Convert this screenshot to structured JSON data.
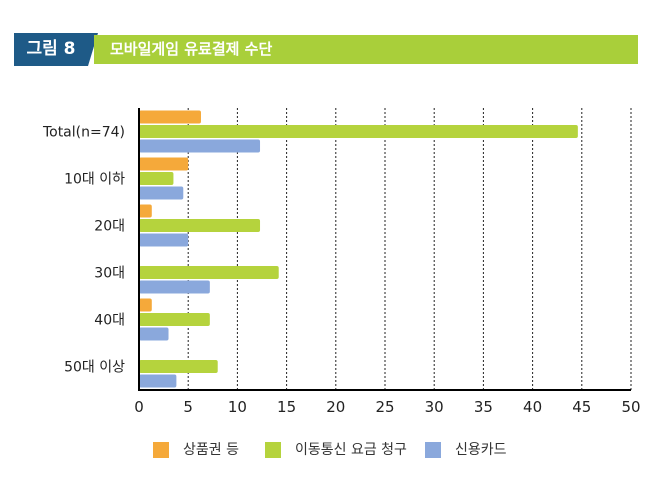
{
  "header": {
    "figure_label": "그림 8",
    "title": "모바일게임 유료결제 수단"
  },
  "colors": {
    "series": [
      "#f5a93a",
      "#b5d33d",
      "#8aa8dc"
    ],
    "figure_box": "#1e5a87",
    "title_bar": "#a9cf3a"
  },
  "chart_data": {
    "type": "bar",
    "orientation": "horizontal",
    "title": "모바일게임 유료결제 수단",
    "categories": [
      "Total(n=74)",
      "10대 이하",
      "20대",
      "30대",
      "40대",
      "50대 이상"
    ],
    "series": [
      {
        "name": "상품권 등",
        "values": [
          6.3,
          5.0,
          1.3,
          0,
          1.3,
          0
        ]
      },
      {
        "name": "이동통신 요금 청구",
        "values": [
          44.6,
          3.5,
          12.3,
          14.2,
          7.2,
          8.0
        ]
      },
      {
        "name": "신용카드",
        "values": [
          12.3,
          4.5,
          5.0,
          7.2,
          3.0,
          3.8
        ]
      }
    ],
    "xlim": [
      0,
      50
    ],
    "xticks": [
      0,
      5,
      10,
      15,
      20,
      25,
      30,
      35,
      40,
      45,
      50
    ],
    "grid": "vertical dashed",
    "legend_position": "bottom"
  }
}
